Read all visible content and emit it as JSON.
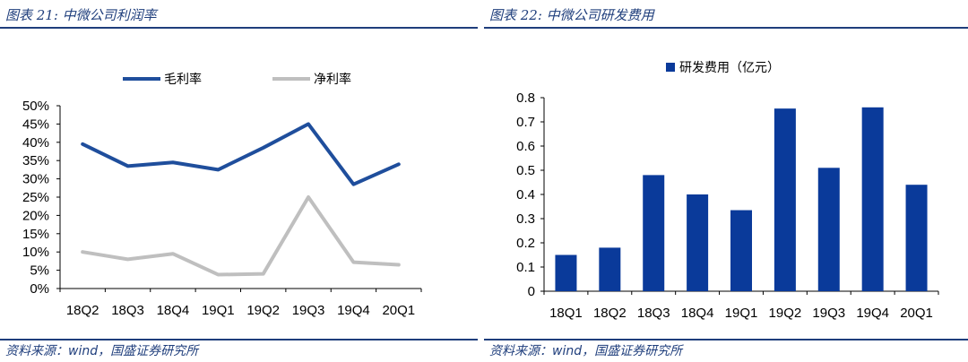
{
  "left": {
    "title": "图表 21:  中微公司利润率",
    "source": "资料来源：wind，国盛证券研究所"
  },
  "right": {
    "title": "图表 22:  中微公司研发费用",
    "source": "资料来源：wind，国盛证券研究所"
  },
  "chart_data": [
    {
      "type": "line",
      "title": "",
      "categories": [
        "18Q2",
        "18Q3",
        "18Q4",
        "19Q1",
        "19Q2",
        "19Q3",
        "19Q4",
        "20Q1"
      ],
      "series": [
        {
          "name": "毛利率",
          "color": "#1f4e9c",
          "values": [
            39.5,
            33.5,
            34.5,
            32.5,
            38.5,
            45.0,
            28.5,
            34.0
          ]
        },
        {
          "name": "净利率",
          "color": "#bfbfbf",
          "values": [
            10.0,
            8.0,
            9.5,
            3.8,
            4.0,
            25.0,
            7.2,
            6.5
          ]
        }
      ],
      "ylim": [
        0,
        50
      ],
      "yticks": [
        "0%",
        "5%",
        "10%",
        "15%",
        "20%",
        "25%",
        "30%",
        "35%",
        "40%",
        "45%",
        "50%"
      ],
      "legend": "top",
      "grid": false
    },
    {
      "type": "bar",
      "title": "",
      "categories": [
        "18Q1",
        "18Q2",
        "18Q3",
        "18Q4",
        "19Q1",
        "19Q2",
        "19Q3",
        "19Q4",
        "20Q1"
      ],
      "series": [
        {
          "name": "研发费用（亿元）",
          "color": "#0a3a9a",
          "values": [
            0.15,
            0.18,
            0.48,
            0.4,
            0.335,
            0.755,
            0.51,
            0.76,
            0.44
          ]
        }
      ],
      "ylim": [
        0,
        0.8
      ],
      "yticks": [
        "0",
        "0.1",
        "0.2",
        "0.3",
        "0.4",
        "0.5",
        "0.6",
        "0.7",
        "0.8"
      ],
      "legend": "top",
      "grid": false
    }
  ]
}
